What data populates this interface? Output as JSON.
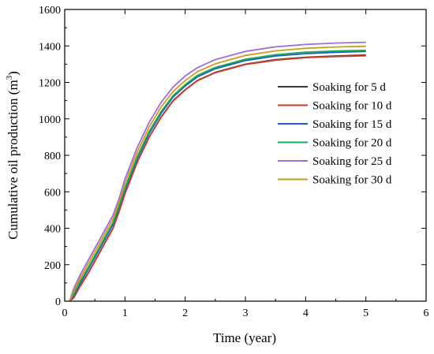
{
  "chart_data": {
    "type": "line",
    "title": "",
    "xlabel": "Time (year)",
    "ylabel_main": "Cumulative oil production (m",
    "ylabel_sup": "3",
    "ylabel_close": ")",
    "xlim": [
      0,
      6
    ],
    "ylim": [
      0,
      1600
    ],
    "xticks": [
      0,
      1,
      2,
      3,
      4,
      5,
      6
    ],
    "yticks": [
      0,
      200,
      400,
      600,
      800,
      1000,
      1200,
      1400,
      1600
    ],
    "grid": false,
    "legend_position": "right",
    "x": [
      0.08,
      0.15,
      0.25,
      0.4,
      0.55,
      0.7,
      0.8,
      0.9,
      1.0,
      1.2,
      1.4,
      1.6,
      1.8,
      2.0,
      2.2,
      2.5,
      3.0,
      3.5,
      4.0,
      4.5,
      5.0
    ],
    "series": [
      {
        "name": "Soaking for 5 d",
        "color": "#3a3a3a",
        "values": [
          0,
          20,
          80,
          160,
          250,
          340,
          400,
          490,
          590,
          760,
          900,
          1010,
          1100,
          1160,
          1210,
          1255,
          1300,
          1325,
          1338,
          1345,
          1350
        ]
      },
      {
        "name": "Soaking for 10 d",
        "color": "#d03a2e",
        "values": [
          0,
          18,
          78,
          158,
          248,
          338,
          398,
          488,
          588,
          758,
          898,
          1008,
          1098,
          1158,
          1208,
          1253,
          1298,
          1322,
          1336,
          1342,
          1346
        ]
      },
      {
        "name": "Soaking for 15 d",
        "color": "#1f5fbf",
        "values": [
          0,
          30,
          95,
          180,
          270,
          360,
          420,
          510,
          610,
          780,
          920,
          1030,
          1120,
          1180,
          1230,
          1275,
          1320,
          1345,
          1358,
          1365,
          1370
        ]
      },
      {
        "name": "Soaking for 20 d",
        "color": "#1faa5a",
        "values": [
          0,
          40,
          105,
          190,
          280,
          370,
          430,
          520,
          620,
          790,
          930,
          1040,
          1128,
          1188,
          1238,
          1282,
          1327,
          1352,
          1366,
          1372,
          1376
        ]
      },
      {
        "name": "Soaking for 25 d",
        "color": "#a569d8",
        "values": [
          0,
          70,
          140,
          230,
          320,
          410,
          470,
          560,
          670,
          840,
          980,
          1090,
          1175,
          1235,
          1280,
          1325,
          1370,
          1395,
          1408,
          1416,
          1420
        ]
      },
      {
        "name": "Soaking for 30 d",
        "color": "#c8a016",
        "values": [
          0,
          55,
          122,
          210,
          300,
          390,
          450,
          540,
          645,
          815,
          955,
          1065,
          1150,
          1210,
          1258,
          1302,
          1348,
          1373,
          1387,
          1394,
          1398
        ]
      }
    ]
  }
}
